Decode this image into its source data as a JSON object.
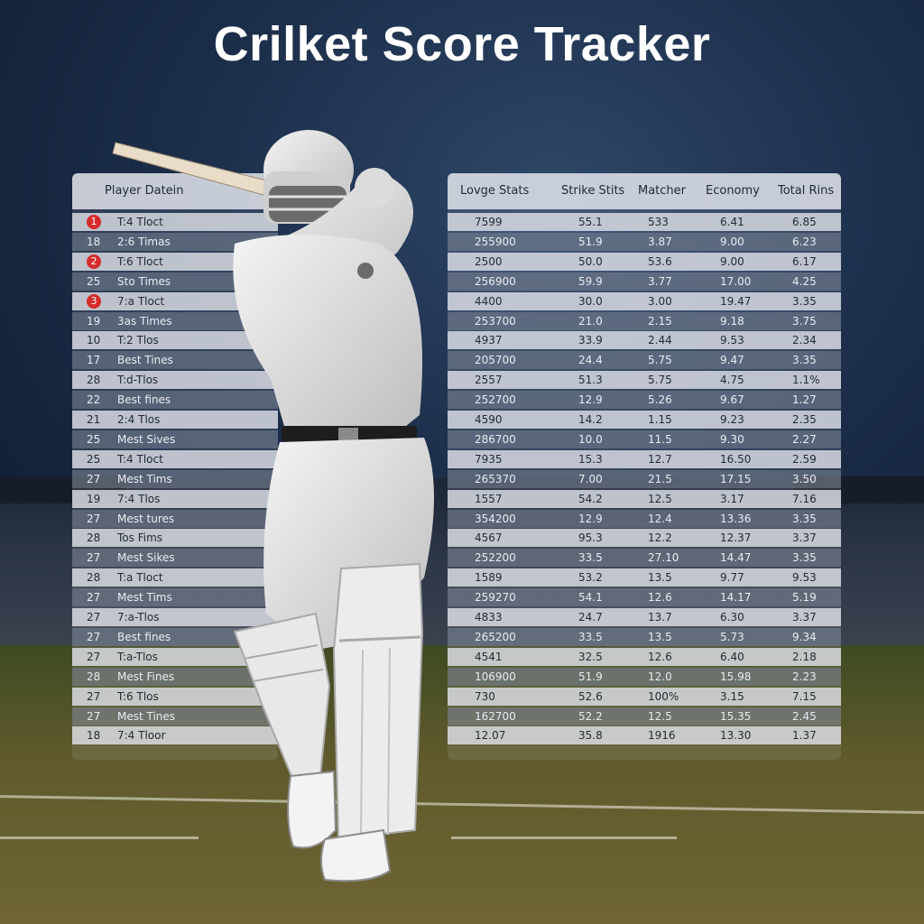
{
  "title": "Crilket Score Tracker",
  "left_table": {
    "header": "Player Datein",
    "rows": [
      {
        "num": "1",
        "label": "T:4 Tloct",
        "badge": true
      },
      {
        "num": "18",
        "label": "2:6 Timas",
        "badge": false
      },
      {
        "num": "2",
        "label": "T:6 Tloct",
        "badge": true
      },
      {
        "num": "25",
        "label": "Sto Times",
        "badge": false
      },
      {
        "num": "3",
        "label": "7:a Tloct",
        "badge": true
      },
      {
        "num": "19",
        "label": "3as Times",
        "badge": false
      },
      {
        "num": "10",
        "label": "T:2 Tlos",
        "badge": false
      },
      {
        "num": "17",
        "label": "Best Tines",
        "badge": false
      },
      {
        "num": "28",
        "label": "T:d-Tlos",
        "badge": false
      },
      {
        "num": "22",
        "label": "Best fines",
        "badge": false
      },
      {
        "num": "21",
        "label": "2:4 Tlos",
        "badge": false
      },
      {
        "num": "25",
        "label": "Mest Sives",
        "badge": false
      },
      {
        "num": "25",
        "label": "T:4 Tloct",
        "badge": false
      },
      {
        "num": "27",
        "label": "Mest Tims",
        "badge": false
      },
      {
        "num": "19",
        "label": "7:4 Tlos",
        "badge": false
      },
      {
        "num": "27",
        "label": "Mest tures",
        "badge": false
      },
      {
        "num": "28",
        "label": "Tos Fims",
        "badge": false
      },
      {
        "num": "27",
        "label": "Mest Sikes",
        "badge": false
      },
      {
        "num": "28",
        "label": "T:a Tloct",
        "badge": false
      },
      {
        "num": "27",
        "label": "Mest Tims",
        "badge": false
      },
      {
        "num": "27",
        "label": "7:a-Tlos",
        "badge": false
      },
      {
        "num": "27",
        "label": "Best fines",
        "badge": false
      },
      {
        "num": "27",
        "label": "T:a-Tlos",
        "badge": false
      },
      {
        "num": "28",
        "label": "Mest Fines",
        "badge": false
      },
      {
        "num": "27",
        "label": "T:6 Tlos",
        "badge": false
      },
      {
        "num": "27",
        "label": "Mest Tines",
        "badge": false
      },
      {
        "num": "18",
        "label": "7:4 Tloor",
        "badge": false
      }
    ]
  },
  "right_table": {
    "headers": [
      "Lovge Stats",
      "Strike Stits",
      "Matcher",
      "Economy",
      "Total Rins"
    ],
    "rows": [
      [
        "7599",
        "55.1",
        "533",
        "6.41",
        "6.85"
      ],
      [
        "255900",
        "51.9",
        "3.87",
        "9.00",
        "6.23"
      ],
      [
        "2500",
        "50.0",
        "53.6",
        "9.00",
        "6.17"
      ],
      [
        "256900",
        "59.9",
        "3.77",
        "17.00",
        "4.25"
      ],
      [
        "4400",
        "30.0",
        "3.00",
        "19.47",
        "3.35"
      ],
      [
        "253700",
        "21.0",
        "2.15",
        "9.18",
        "3.75"
      ],
      [
        "4937",
        "33.9",
        "2.44",
        "9.53",
        "2.34"
      ],
      [
        "205700",
        "24.4",
        "5.75",
        "9.47",
        "3.35"
      ],
      [
        "2557",
        "51.3",
        "5.75",
        "4.75",
        "1.1%"
      ],
      [
        "252700",
        "12.9",
        "5.26",
        "9.67",
        "1.27"
      ],
      [
        "4590",
        "14.2",
        "1.15",
        "9.23",
        "2.35"
      ],
      [
        "286700",
        "10.0",
        "11.5",
        "9.30",
        "2.27"
      ],
      [
        "7935",
        "15.3",
        "12.7",
        "16.50",
        "2.59"
      ],
      [
        "265370",
        "7.00",
        "21.5",
        "17.15",
        "3.50"
      ],
      [
        "1557",
        "54.2",
        "12.5",
        "3.17",
        "7.16"
      ],
      [
        "354200",
        "12.9",
        "12.4",
        "13.36",
        "3.35"
      ],
      [
        "4567",
        "95.3",
        "12.2",
        "12.37",
        "3.37"
      ],
      [
        "252200",
        "33.5",
        "27.10",
        "14.47",
        "3.35"
      ],
      [
        "1589",
        "53.2",
        "13.5",
        "9.77",
        "9.53"
      ],
      [
        "259270",
        "54.1",
        "12.6",
        "14.17",
        "5.19"
      ],
      [
        "4833",
        "24.7",
        "13.7",
        "6.30",
        "3.37"
      ],
      [
        "265200",
        "33.5",
        "13.5",
        "5.73",
        "9.34"
      ],
      [
        "4541",
        "32.5",
        "12.6",
        "6.40",
        "2.18"
      ],
      [
        "106900",
        "51.9",
        "12.0",
        "15.98",
        "2.23"
      ],
      [
        "730",
        "52.6",
        "100%",
        "3.15",
        "7.15"
      ],
      [
        "162700",
        "52.2",
        "12.5",
        "15.35",
        "2.45"
      ],
      [
        "12.07",
        "35.8",
        "1916",
        "13.30",
        "1.37"
      ]
    ]
  }
}
